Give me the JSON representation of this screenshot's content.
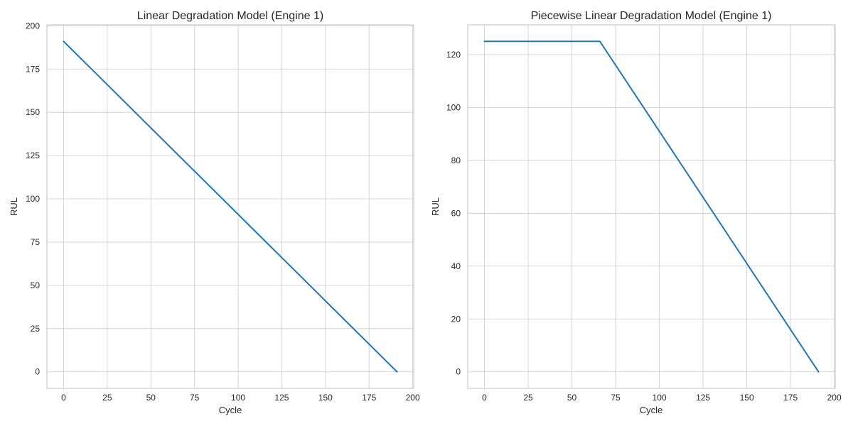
{
  "chart_data": [
    {
      "type": "line",
      "title": "Linear Degradation Model (Engine 1)",
      "xlabel": "Cycle",
      "ylabel": "RUL",
      "xlim": [
        -9.55,
        200.55
      ],
      "ylim": [
        -9.55,
        200.55
      ],
      "xticks": [
        0,
        25,
        50,
        75,
        100,
        125,
        150,
        175,
        200
      ],
      "yticks": [
        0,
        25,
        50,
        75,
        100,
        125,
        150,
        175,
        200
      ],
      "grid": true,
      "series": [
        {
          "color": "#1f77b4",
          "x": [
            0,
            191
          ],
          "y": [
            191,
            0
          ]
        }
      ]
    },
    {
      "type": "line",
      "title": "Piecewise Linear Degradation Model (Engine 1)",
      "xlabel": "Cycle",
      "ylabel": "RUL",
      "xlim": [
        -9.55,
        200.55
      ],
      "ylim": [
        -6.25,
        131.25
      ],
      "xticks": [
        0,
        25,
        50,
        75,
        100,
        125,
        150,
        175,
        200
      ],
      "yticks": [
        0,
        20,
        40,
        60,
        80,
        100,
        120
      ],
      "grid": true,
      "series": [
        {
          "color": "#1f77b4",
          "x": [
            0,
            66,
            191
          ],
          "y": [
            125,
            125,
            0
          ]
        }
      ]
    }
  ]
}
